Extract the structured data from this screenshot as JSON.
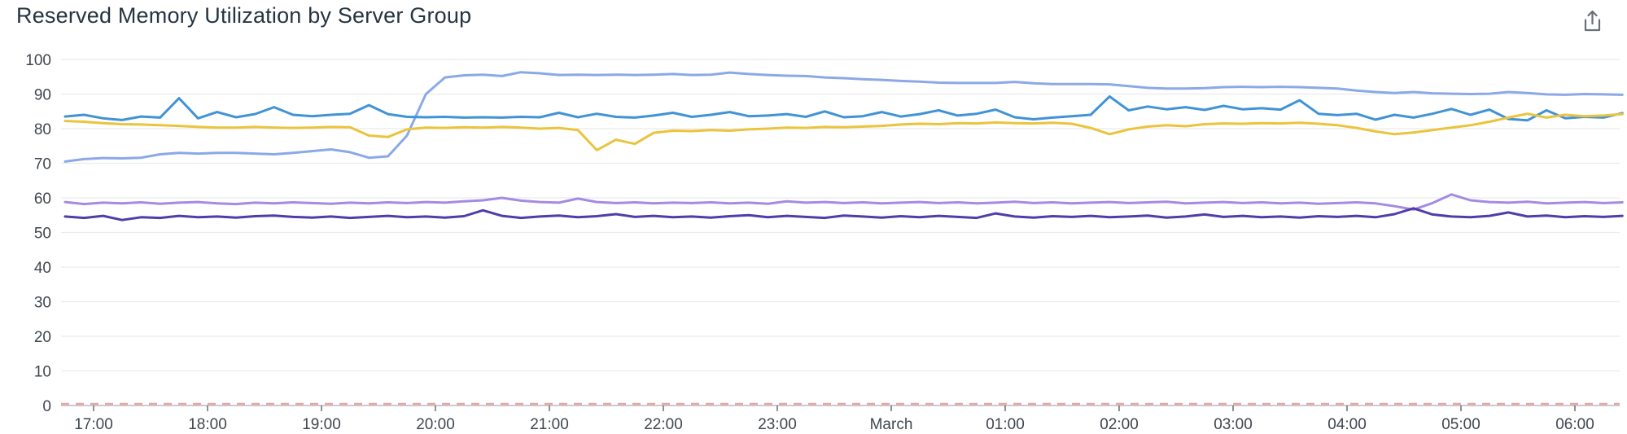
{
  "header": {
    "title": "Reserved Memory Utilization by Server Group"
  },
  "icons": {
    "export": "export-upload-arrow"
  },
  "colors": {
    "title_text": "#263441",
    "axis_text": "#40474e",
    "gridline": "#ebebeb",
    "axis_line": "#b6bbbd",
    "tick_mark": "#676d73",
    "threshold": "#e9a6a6",
    "icon": "#687076"
  },
  "chart_data": {
    "type": "line",
    "title": "Reserved Memory Utilization by Server Group",
    "xlabel": "",
    "ylabel": "",
    "ylim": [
      0,
      100
    ],
    "grid": true,
    "legend": false,
    "x_start_hours": 16.75,
    "x_step_hours": 0.1666667,
    "x_axis": {
      "ticks": [
        {
          "label": "17:00",
          "value": 17
        },
        {
          "label": "18:00",
          "value": 18
        },
        {
          "label": "19:00",
          "value": 19
        },
        {
          "label": "20:00",
          "value": 20
        },
        {
          "label": "21:00",
          "value": 21
        },
        {
          "label": "22:00",
          "value": 22
        },
        {
          "label": "23:00",
          "value": 23
        },
        {
          "label": "March",
          "value": 24
        },
        {
          "label": "01:00",
          "value": 25
        },
        {
          "label": "02:00",
          "value": 26
        },
        {
          "label": "03:00",
          "value": 27
        },
        {
          "label": "04:00",
          "value": 28
        },
        {
          "label": "05:00",
          "value": 29
        },
        {
          "label": "06:00",
          "value": 30
        }
      ]
    },
    "y_axis": {
      "min": 0,
      "max": 100,
      "step": 10,
      "ticks": [
        {
          "label": "100",
          "value": 100
        },
        {
          "label": "90",
          "value": 90
        },
        {
          "label": "80",
          "value": 80
        },
        {
          "label": "70",
          "value": 70
        },
        {
          "label": "60",
          "value": 60
        },
        {
          "label": "50",
          "value": 50
        },
        {
          "label": "40",
          "value": 40
        },
        {
          "label": "30",
          "value": 30
        },
        {
          "label": "20",
          "value": 20
        },
        {
          "label": "10",
          "value": 10
        },
        {
          "label": "0",
          "value": 0
        }
      ]
    },
    "threshold_line": {
      "value": 0,
      "color": "#e9a6a6",
      "style": "dashed"
    },
    "series": [
      {
        "name": "light-blue-series",
        "color": "#8aa9e8",
        "values": [
          70.5,
          71.2,
          71.5,
          71.4,
          71.6,
          72.6,
          73.0,
          72.8,
          73.0,
          73.0,
          72.8,
          72.6,
          73.0,
          73.5,
          74.0,
          73.2,
          71.6,
          72.0,
          78.0,
          90.0,
          94.8,
          95.4,
          95.6,
          95.2,
          96.3,
          96.0,
          95.5,
          95.6,
          95.5,
          95.6,
          95.5,
          95.6,
          95.8,
          95.5,
          95.6,
          96.2,
          95.8,
          95.5,
          95.3,
          95.2,
          94.8,
          94.6,
          94.3,
          94.1,
          93.8,
          93.6,
          93.3,
          93.2,
          93.2,
          93.2,
          93.5,
          93.1,
          92.9,
          92.9,
          92.9,
          92.8,
          92.3,
          91.8,
          91.6,
          91.6,
          91.7,
          92.0,
          92.1,
          92.0,
          92.1,
          92.0,
          91.8,
          91.6,
          91.0,
          90.6,
          90.3,
          90.6,
          90.2,
          90.1,
          90.0,
          90.1,
          90.6,
          90.3,
          89.9,
          89.8,
          90.0,
          89.9,
          89.8
        ]
      },
      {
        "name": "blue-series",
        "color": "#4193d6",
        "values": [
          83.5,
          84.0,
          83.0,
          82.5,
          83.5,
          83.2,
          88.8,
          83.0,
          84.8,
          83.3,
          84.2,
          86.2,
          84.0,
          83.6,
          84.0,
          84.3,
          86.8,
          84.2,
          83.4,
          83.3,
          83.4,
          83.2,
          83.3,
          83.2,
          83.4,
          83.3,
          84.6,
          83.3,
          84.3,
          83.4,
          83.2,
          83.8,
          84.6,
          83.4,
          84.0,
          84.8,
          83.6,
          83.8,
          84.2,
          83.4,
          85.0,
          83.3,
          83.6,
          84.8,
          83.5,
          84.2,
          85.3,
          83.8,
          84.3,
          85.5,
          83.3,
          82.7,
          83.2,
          83.6,
          84.0,
          89.3,
          85.3,
          86.4,
          85.6,
          86.2,
          85.4,
          86.6,
          85.6,
          85.9,
          85.5,
          88.2,
          84.3,
          83.9,
          84.3,
          82.6,
          84.0,
          83.2,
          84.3,
          85.7,
          84.0,
          85.5,
          82.8,
          82.4,
          85.3,
          83.0,
          83.4,
          83.2,
          84.5
        ]
      },
      {
        "name": "yellow-series",
        "color": "#eac43d",
        "values": [
          82.2,
          82.0,
          81.6,
          81.3,
          81.2,
          81.0,
          80.8,
          80.5,
          80.3,
          80.3,
          80.5,
          80.3,
          80.2,
          80.3,
          80.5,
          80.4,
          78.0,
          77.6,
          79.8,
          80.3,
          80.2,
          80.4,
          80.3,
          80.5,
          80.3,
          80.0,
          80.2,
          79.6,
          73.8,
          76.8,
          75.6,
          78.8,
          79.4,
          79.3,
          79.6,
          79.4,
          79.8,
          80.0,
          80.3,
          80.2,
          80.5,
          80.4,
          80.6,
          80.8,
          81.2,
          81.4,
          81.3,
          81.6,
          81.5,
          81.8,
          81.6,
          81.5,
          81.7,
          81.4,
          80.2,
          78.4,
          79.8,
          80.6,
          81.0,
          80.7,
          81.3,
          81.5,
          81.4,
          81.6,
          81.5,
          81.7,
          81.4,
          81.0,
          80.2,
          79.2,
          78.4,
          78.9,
          79.6,
          80.3,
          81.0,
          82.0,
          83.2,
          84.3,
          83.2,
          84.0,
          83.6,
          83.8,
          84.2
        ]
      },
      {
        "name": "light-purple-series",
        "color": "#a58ae3",
        "values": [
          58.8,
          58.2,
          58.6,
          58.4,
          58.7,
          58.3,
          58.6,
          58.8,
          58.4,
          58.2,
          58.6,
          58.4,
          58.7,
          58.5,
          58.3,
          58.6,
          58.4,
          58.7,
          58.5,
          58.8,
          58.6,
          59.0,
          59.3,
          60.0,
          59.2,
          58.8,
          58.6,
          59.8,
          58.8,
          58.5,
          58.7,
          58.4,
          58.6,
          58.5,
          58.7,
          58.4,
          58.6,
          58.3,
          59.0,
          58.6,
          58.8,
          58.5,
          58.7,
          58.4,
          58.6,
          58.8,
          58.5,
          58.7,
          58.4,
          58.6,
          58.9,
          58.5,
          58.7,
          58.4,
          58.6,
          58.8,
          58.5,
          58.7,
          58.9,
          58.4,
          58.6,
          58.8,
          58.5,
          58.7,
          58.4,
          58.6,
          58.3,
          58.5,
          58.7,
          58.4,
          57.6,
          56.6,
          58.5,
          61.0,
          59.3,
          58.8,
          58.6,
          58.9,
          58.4,
          58.6,
          58.8,
          58.5,
          58.7
        ]
      },
      {
        "name": "dark-purple-series",
        "color": "#523caa",
        "values": [
          54.6,
          54.2,
          54.8,
          53.6,
          54.4,
          54.2,
          54.8,
          54.4,
          54.6,
          54.3,
          54.7,
          54.9,
          54.5,
          54.3,
          54.6,
          54.2,
          54.5,
          54.8,
          54.4,
          54.6,
          54.3,
          54.7,
          56.4,
          54.8,
          54.2,
          54.6,
          54.9,
          54.4,
          54.7,
          55.3,
          54.5,
          54.8,
          54.4,
          54.6,
          54.3,
          54.7,
          55.0,
          54.4,
          54.8,
          54.5,
          54.2,
          54.9,
          54.6,
          54.3,
          54.7,
          54.4,
          54.8,
          54.5,
          54.2,
          55.5,
          54.6,
          54.3,
          54.7,
          54.5,
          54.8,
          54.4,
          54.6,
          54.9,
          54.3,
          54.6,
          55.2,
          54.5,
          54.8,
          54.4,
          54.6,
          54.3,
          54.7,
          54.5,
          54.8,
          54.4,
          55.3,
          57.0,
          55.2,
          54.6,
          54.4,
          54.8,
          55.8,
          54.6,
          54.9,
          54.4,
          54.7,
          54.5,
          54.8
        ]
      }
    ]
  }
}
